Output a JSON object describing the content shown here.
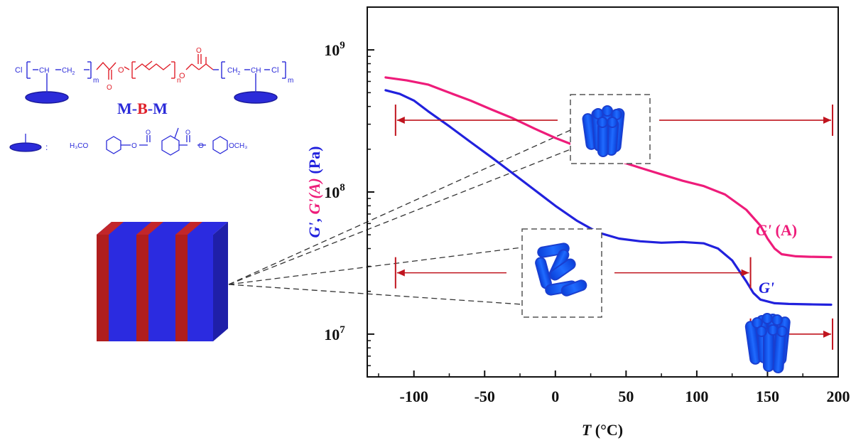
{
  "chart_data": {
    "type": "line",
    "y_scale": "log",
    "xlim": [
      -133,
      200
    ],
    "ylim": [
      5000000,
      2000000000
    ],
    "x_ticks": [
      -100,
      -50,
      0,
      50,
      100,
      150,
      200
    ],
    "x_tick_labels": [
      "-100",
      "-50",
      "0",
      "50",
      "100",
      "150",
      "200"
    ],
    "y_tick_labels": [
      {
        "value": 1000000000,
        "base": "10",
        "exp": "9"
      },
      {
        "value": 100000000,
        "base": "10",
        "exp": "8"
      },
      {
        "value": 10000000,
        "base": "10",
        "exp": "7"
      }
    ],
    "xlabel": {
      "var": "T",
      "unit": " (°C)"
    },
    "ylabel": {
      "g": "G'",
      "sep": ", ",
      "ga": "G'(A)",
      "unit": " (Pa)"
    },
    "series": [
      {
        "name": "G' (A)",
        "color": "#ee1c7a",
        "x": [
          -120,
          -105,
          -90,
          -75,
          -60,
          -45,
          -30,
          -15,
          0,
          15,
          30,
          45,
          60,
          75,
          90,
          105,
          120,
          135,
          145,
          150,
          155,
          160,
          170,
          180,
          195
        ],
        "y": [
          640000000,
          610000000,
          570000000,
          500000000,
          440000000,
          380000000,
          330000000,
          280000000,
          240000000,
          210000000,
          185000000,
          165000000,
          148000000,
          133000000,
          120000000,
          110000000,
          96000000,
          75000000,
          58000000,
          47000000,
          40000000,
          36500000,
          35300000,
          35000000,
          34800000
        ]
      },
      {
        "name": "G'",
        "color": "#2121dd",
        "x": [
          -120,
          -110,
          -100,
          -90,
          -75,
          -60,
          -45,
          -30,
          -15,
          0,
          15,
          30,
          45,
          60,
          75,
          90,
          105,
          115,
          125,
          135,
          140,
          145,
          155,
          165,
          180,
          195
        ],
        "y": [
          520000000,
          490000000,
          440000000,
          370000000,
          290000000,
          225000000,
          175000000,
          135000000,
          104000000,
          80000000,
          63000000,
          52000000,
          47000000,
          45000000,
          44000000,
          44500000,
          43500000,
          40000000,
          33000000,
          23500000,
          19500000,
          17500000,
          16500000,
          16300000,
          16200000,
          16100000
        ]
      }
    ],
    "series_labels": [
      {
        "name": "G' (A)",
        "text": "G'",
        "suffix": " (A)"
      },
      {
        "name": "G'",
        "text": "G'",
        "suffix": ""
      }
    ],
    "annotations": {
      "arrows_color": "#c0141e",
      "range_1": {
        "x_start": -113,
        "x_end": 196,
        "y": 320000000
      },
      "range_2": {
        "x_start": -113,
        "x_end": 138,
        "y": 27000000
      },
      "range_3": {
        "x_start": 138,
        "x_end": 196,
        "y": 10000000
      }
    },
    "molecule": {
      "label_m1": "M",
      "dash1": "-",
      "label_b": "B",
      "dash2": "-",
      "label_m2": "M",
      "colors": {
        "mesogen": "#2b2bd9",
        "backbone": "#e0202a",
        "block_blue": "#2b2be0",
        "block_red": "#b01e1e"
      },
      "end_group_left": "Cl",
      "end_group_right": "Cl",
      "subscript_m": "m",
      "subscript_n": "n",
      "ch": "CH",
      "ch2": "CH",
      "ch2_sub": "2",
      "o": "O",
      "methoxy_left": "H₃CO",
      "methoxy_right": "OCH₃",
      "colon": ":"
    }
  }
}
